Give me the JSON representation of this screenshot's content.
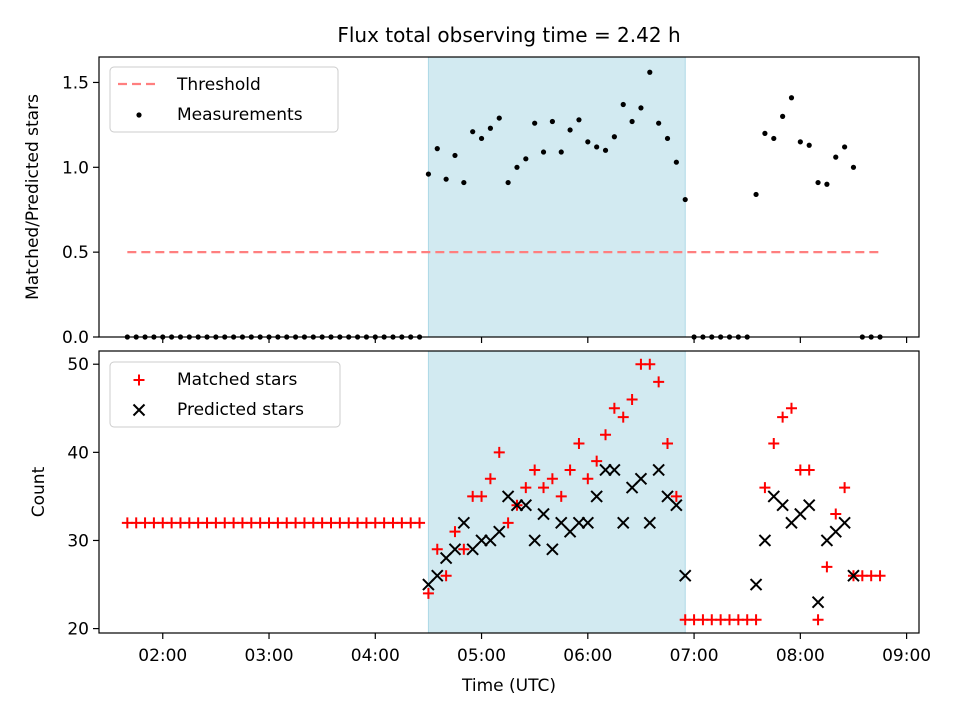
{
  "title": "Flux total observing time = 2.42 h",
  "chart_data": [
    {
      "type": "scatter",
      "panel": "top",
      "ylabel": "Matched/Predicted stars",
      "xlim": [
        "01:24",
        "09:07"
      ],
      "ylim": [
        0,
        1.65
      ],
      "yticks": [
        0.0,
        0.5,
        1.0,
        1.5
      ],
      "ytick_labels": [
        "0.0",
        "0.5",
        "1.0",
        "1.5"
      ],
      "shaded_interval": [
        "04:30",
        "06:55"
      ],
      "shade_color": "#add8e6",
      "legend_position": "top-left",
      "threshold": {
        "name": "Threshold",
        "value": 0.5,
        "x_range": [
          "01:40",
          "08:46"
        ],
        "color": "#ff7f7f",
        "style": "dashed"
      },
      "series": [
        {
          "name": "Measurements",
          "color": "#000000",
          "marker": "dot",
          "points": [
            [
              "01:40",
              0
            ],
            [
              "01:45",
              0
            ],
            [
              "01:50",
              0
            ],
            [
              "01:55",
              0
            ],
            [
              "02:00",
              0
            ],
            [
              "02:05",
              0
            ],
            [
              "02:10",
              0
            ],
            [
              "02:15",
              0
            ],
            [
              "02:20",
              0
            ],
            [
              "02:25",
              0
            ],
            [
              "02:30",
              0
            ],
            [
              "02:35",
              0
            ],
            [
              "02:40",
              0
            ],
            [
              "02:45",
              0
            ],
            [
              "02:50",
              0
            ],
            [
              "02:55",
              0
            ],
            [
              "03:00",
              0
            ],
            [
              "03:05",
              0
            ],
            [
              "03:10",
              0
            ],
            [
              "03:15",
              0
            ],
            [
              "03:20",
              0
            ],
            [
              "03:25",
              0
            ],
            [
              "03:30",
              0
            ],
            [
              "03:35",
              0
            ],
            [
              "03:40",
              0
            ],
            [
              "03:45",
              0
            ],
            [
              "03:50",
              0
            ],
            [
              "03:55",
              0
            ],
            [
              "04:00",
              0
            ],
            [
              "04:05",
              0
            ],
            [
              "04:10",
              0
            ],
            [
              "04:15",
              0
            ],
            [
              "04:20",
              0
            ],
            [
              "04:25",
              0
            ],
            [
              "04:30",
              0.96
            ],
            [
              "04:35",
              1.11
            ],
            [
              "04:40",
              0.93
            ],
            [
              "04:45",
              1.07
            ],
            [
              "04:50",
              0.91
            ],
            [
              "04:55",
              1.21
            ],
            [
              "05:00",
              1.17
            ],
            [
              "05:05",
              1.23
            ],
            [
              "05:10",
              1.29
            ],
            [
              "05:15",
              0.91
            ],
            [
              "05:20",
              1.0
            ],
            [
              "05:25",
              1.05
            ],
            [
              "05:30",
              1.26
            ],
            [
              "05:35",
              1.09
            ],
            [
              "05:40",
              1.27
            ],
            [
              "05:45",
              1.09
            ],
            [
              "05:50",
              1.22
            ],
            [
              "05:55",
              1.28
            ],
            [
              "06:00",
              1.15
            ],
            [
              "06:05",
              1.12
            ],
            [
              "06:10",
              1.1
            ],
            [
              "06:15",
              1.18
            ],
            [
              "06:20",
              1.37
            ],
            [
              "06:25",
              1.27
            ],
            [
              "06:30",
              1.35
            ],
            [
              "06:35",
              1.56
            ],
            [
              "06:40",
              1.26
            ],
            [
              "06:45",
              1.17
            ],
            [
              "06:50",
              1.03
            ],
            [
              "06:55",
              0.81
            ],
            [
              "07:00",
              0
            ],
            [
              "07:05",
              0
            ],
            [
              "07:10",
              0
            ],
            [
              "07:15",
              0
            ],
            [
              "07:20",
              0
            ],
            [
              "07:25",
              0
            ],
            [
              "07:30",
              0
            ],
            [
              "07:35",
              0.84
            ],
            [
              "07:40",
              1.2
            ],
            [
              "07:45",
              1.17
            ],
            [
              "07:50",
              1.3
            ],
            [
              "07:55",
              1.41
            ],
            [
              "08:00",
              1.15
            ],
            [
              "08:05",
              1.13
            ],
            [
              "08:10",
              0.91
            ],
            [
              "08:15",
              0.9
            ],
            [
              "08:20",
              1.06
            ],
            [
              "08:25",
              1.12
            ],
            [
              "08:30",
              1.0
            ],
            [
              "08:35",
              0
            ],
            [
              "08:40",
              0
            ],
            [
              "08:45",
              0
            ]
          ]
        }
      ]
    },
    {
      "type": "scatter",
      "panel": "bottom",
      "xlabel": "Time (UTC)",
      "ylabel": "Count",
      "xlim": [
        "01:24",
        "09:07"
      ],
      "ylim": [
        19.5,
        51.5
      ],
      "xticks": [
        "02:00",
        "03:00",
        "04:00",
        "05:00",
        "06:00",
        "07:00",
        "08:00",
        "09:00"
      ],
      "yticks": [
        20,
        30,
        40,
        50
      ],
      "ytick_labels": [
        "20",
        "30",
        "40",
        "50"
      ],
      "shaded_interval": [
        "04:30",
        "06:55"
      ],
      "shade_color": "#add8e6",
      "legend_position": "top-left",
      "series": [
        {
          "name": "Matched stars",
          "color": "#ff0000",
          "marker": "plus",
          "points": [
            [
              "01:40",
              32
            ],
            [
              "01:45",
              32
            ],
            [
              "01:50",
              32
            ],
            [
              "01:55",
              32
            ],
            [
              "02:00",
              32
            ],
            [
              "02:05",
              32
            ],
            [
              "02:10",
              32
            ],
            [
              "02:15",
              32
            ],
            [
              "02:20",
              32
            ],
            [
              "02:25",
              32
            ],
            [
              "02:30",
              32
            ],
            [
              "02:35",
              32
            ],
            [
              "02:40",
              32
            ],
            [
              "02:45",
              32
            ],
            [
              "02:50",
              32
            ],
            [
              "02:55",
              32
            ],
            [
              "03:00",
              32
            ],
            [
              "03:05",
              32
            ],
            [
              "03:10",
              32
            ],
            [
              "03:15",
              32
            ],
            [
              "03:20",
              32
            ],
            [
              "03:25",
              32
            ],
            [
              "03:30",
              32
            ],
            [
              "03:35",
              32
            ],
            [
              "03:40",
              32
            ],
            [
              "03:45",
              32
            ],
            [
              "03:50",
              32
            ],
            [
              "03:55",
              32
            ],
            [
              "04:00",
              32
            ],
            [
              "04:05",
              32
            ],
            [
              "04:10",
              32
            ],
            [
              "04:15",
              32
            ],
            [
              "04:20",
              32
            ],
            [
              "04:25",
              32
            ],
            [
              "04:30",
              24
            ],
            [
              "04:35",
              29
            ],
            [
              "04:40",
              26
            ],
            [
              "04:45",
              31
            ],
            [
              "04:50",
              29
            ],
            [
              "04:55",
              35
            ],
            [
              "05:00",
              35
            ],
            [
              "05:05",
              37
            ],
            [
              "05:10",
              40
            ],
            [
              "05:15",
              32
            ],
            [
              "05:20",
              34
            ],
            [
              "05:25",
              36
            ],
            [
              "05:30",
              38
            ],
            [
              "05:35",
              36
            ],
            [
              "05:40",
              37
            ],
            [
              "05:45",
              35
            ],
            [
              "05:50",
              38
            ],
            [
              "05:55",
              41
            ],
            [
              "06:00",
              37
            ],
            [
              "06:05",
              39
            ],
            [
              "06:10",
              42
            ],
            [
              "06:15",
              45
            ],
            [
              "06:20",
              44
            ],
            [
              "06:25",
              46
            ],
            [
              "06:30",
              50
            ],
            [
              "06:35",
              50
            ],
            [
              "06:40",
              48
            ],
            [
              "06:45",
              41
            ],
            [
              "06:50",
              35
            ],
            [
              "06:55",
              21
            ],
            [
              "07:00",
              21
            ],
            [
              "07:05",
              21
            ],
            [
              "07:10",
              21
            ],
            [
              "07:15",
              21
            ],
            [
              "07:20",
              21
            ],
            [
              "07:25",
              21
            ],
            [
              "07:30",
              21
            ],
            [
              "07:35",
              21
            ],
            [
              "07:40",
              36
            ],
            [
              "07:45",
              41
            ],
            [
              "07:50",
              44
            ],
            [
              "07:55",
              45
            ],
            [
              "08:00",
              38
            ],
            [
              "08:05",
              38
            ],
            [
              "08:10",
              21
            ],
            [
              "08:15",
              27
            ],
            [
              "08:20",
              33
            ],
            [
              "08:25",
              36
            ],
            [
              "08:30",
              26
            ],
            [
              "08:35",
              26
            ],
            [
              "08:40",
              26
            ],
            [
              "08:45",
              26
            ]
          ]
        },
        {
          "name": "Predicted stars",
          "color": "#000000",
          "marker": "x",
          "points": [
            [
              "04:30",
              25
            ],
            [
              "04:35",
              26
            ],
            [
              "04:40",
              28
            ],
            [
              "04:45",
              29
            ],
            [
              "04:50",
              32
            ],
            [
              "04:55",
              29
            ],
            [
              "05:00",
              30
            ],
            [
              "05:05",
              30
            ],
            [
              "05:10",
              31
            ],
            [
              "05:15",
              35
            ],
            [
              "05:20",
              34
            ],
            [
              "05:25",
              34
            ],
            [
              "05:30",
              30
            ],
            [
              "05:35",
              33
            ],
            [
              "05:40",
              29
            ],
            [
              "05:45",
              32
            ],
            [
              "05:50",
              31
            ],
            [
              "05:55",
              32
            ],
            [
              "06:00",
              32
            ],
            [
              "06:05",
              35
            ],
            [
              "06:10",
              38
            ],
            [
              "06:15",
              38
            ],
            [
              "06:20",
              32
            ],
            [
              "06:25",
              36
            ],
            [
              "06:30",
              37
            ],
            [
              "06:35",
              32
            ],
            [
              "06:40",
              38
            ],
            [
              "06:45",
              35
            ],
            [
              "06:50",
              34
            ],
            [
              "06:55",
              26
            ],
            [
              "07:35",
              25
            ],
            [
              "07:40",
              30
            ],
            [
              "07:45",
              35
            ],
            [
              "07:50",
              34
            ],
            [
              "07:55",
              32
            ],
            [
              "08:00",
              33
            ],
            [
              "08:05",
              34
            ],
            [
              "08:10",
              23
            ],
            [
              "08:15",
              30
            ],
            [
              "08:20",
              31
            ],
            [
              "08:25",
              32
            ],
            [
              "08:30",
              26
            ]
          ]
        }
      ]
    }
  ]
}
